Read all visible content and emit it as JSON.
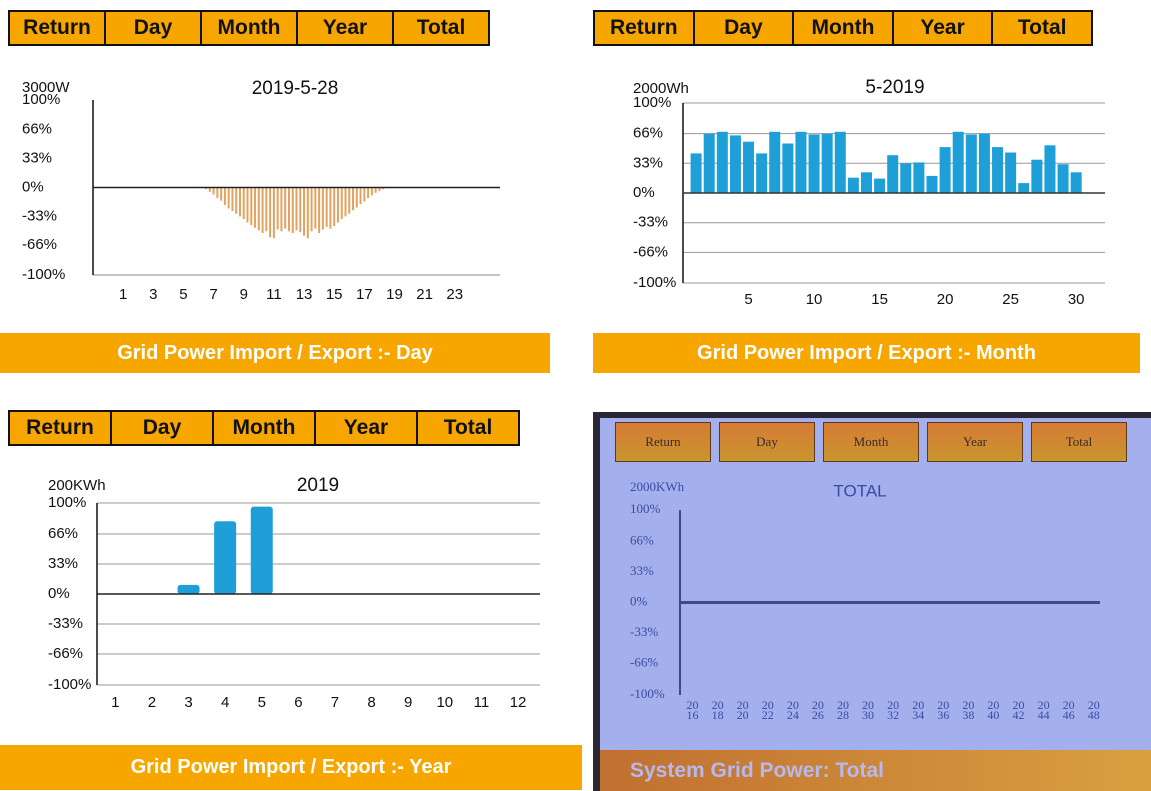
{
  "panels": [
    {
      "buttons": [
        "Return",
        "Day",
        "Month",
        "Year",
        "Total"
      ],
      "caption": "Grid Power Import / Export :- Day"
    },
    {
      "buttons": [
        "Return",
        "Day",
        "Month",
        "Year",
        "Total"
      ],
      "caption": "Grid Power Import / Export :- Month"
    },
    {
      "buttons": [
        "Return",
        "Day",
        "Month",
        "Year",
        "Total"
      ],
      "caption": "Grid Power Import / Export :- Year"
    },
    {
      "buttons": [
        "Return",
        "Day",
        "Month",
        "Year",
        "Total"
      ],
      "caption": "System Grid Power: Total"
    }
  ],
  "chart_data": [
    {
      "type": "bar",
      "title": "2019-5-28",
      "unit_label": "3000W",
      "color": "#e2a260",
      "grid": false,
      "x": [
        6.5,
        6.75,
        7,
        7.25,
        7.5,
        7.75,
        8,
        8.25,
        8.5,
        8.75,
        9,
        9.25,
        9.5,
        9.75,
        10,
        10.25,
        10.5,
        10.75,
        11,
        11.25,
        11.5,
        11.75,
        12,
        12.25,
        12.5,
        12.75,
        13,
        13.25,
        13.5,
        13.75,
        14,
        14.25,
        14.5,
        14.75,
        15,
        15.25,
        15.5,
        15.75,
        16,
        16.25,
        16.5,
        16.75,
        17,
        17.25,
        17.5,
        17.75,
        18,
        18.25
      ],
      "values": [
        -2,
        -5,
        -8,
        -12,
        -15,
        -20,
        -24,
        -27,
        -30,
        -33,
        -36,
        -40,
        -43,
        -46,
        -49,
        -52,
        -50,
        -57,
        -58,
        -48,
        -50,
        -47,
        -50,
        -52,
        -49,
        -51,
        -55,
        -58,
        -50,
        -47,
        -52,
        -48,
        -45,
        -47,
        -44,
        -40,
        -36,
        -33,
        -30,
        -26,
        -23,
        -19,
        -16,
        -12,
        -9,
        -6,
        -4,
        -2
      ],
      "xlim": [
        -1,
        26
      ],
      "xticks": [
        1,
        3,
        5,
        7,
        9,
        11,
        13,
        15,
        17,
        19,
        21,
        23
      ],
      "ylim": [
        -100,
        100
      ],
      "yticks": [
        {
          "value": 100,
          "label": "100%"
        },
        {
          "value": 66,
          "label": "66%"
        },
        {
          "value": 33,
          "label": "33%"
        },
        {
          "value": 0,
          "label": "0%"
        },
        {
          "value": -33,
          "label": "-33%"
        },
        {
          "value": -66,
          "label": "-66%"
        },
        {
          "value": -100,
          "label": "-100%"
        }
      ]
    },
    {
      "type": "bar",
      "title": "5-2019",
      "unit_label": "2000Wh",
      "color": "#1e9fd8",
      "grid": true,
      "x": [
        1,
        2,
        3,
        4,
        5,
        6,
        7,
        8,
        9,
        10,
        11,
        12,
        13,
        14,
        15,
        16,
        17,
        18,
        19,
        20,
        21,
        22,
        23,
        24,
        25,
        26,
        27,
        28,
        29,
        30
      ],
      "values": [
        44,
        66,
        68,
        64,
        57,
        44,
        68,
        55,
        68,
        65,
        66,
        68,
        17,
        23,
        16,
        42,
        33,
        34,
        19,
        51,
        68,
        65,
        66,
        51,
        45,
        11,
        37,
        53,
        32,
        23
      ],
      "xlim": [
        0,
        32.2
      ],
      "xticks": [
        5,
        10,
        15,
        20,
        25,
        30
      ],
      "ylim": [
        -100,
        100
      ],
      "yticks": [
        {
          "value": 100,
          "label": "100%"
        },
        {
          "value": 66,
          "label": "66%"
        },
        {
          "value": 33,
          "label": "33%"
        },
        {
          "value": 0,
          "label": "0%"
        },
        {
          "value": -33,
          "label": "-33%"
        },
        {
          "value": -66,
          "label": "-66%"
        },
        {
          "value": -100,
          "label": "-100%"
        }
      ]
    },
    {
      "type": "bar",
      "title": "2019",
      "unit_label": "200KWh",
      "color": "#1e9fd8",
      "grid": true,
      "x": [
        3,
        4,
        5
      ],
      "values": [
        10,
        80,
        96
      ],
      "xlim": [
        0.5,
        12.6
      ],
      "xticks": [
        1,
        2,
        3,
        4,
        5,
        6,
        7,
        8,
        9,
        10,
        11,
        12
      ],
      "ylim": [
        -100,
        100
      ],
      "yticks": [
        {
          "value": 100,
          "label": "100%"
        },
        {
          "value": 66,
          "label": "66%"
        },
        {
          "value": 33,
          "label": "33%"
        },
        {
          "value": 0,
          "label": "0%"
        },
        {
          "value": -33,
          "label": "-33%"
        },
        {
          "value": -66,
          "label": "-66%"
        },
        {
          "value": -100,
          "label": "-100%"
        }
      ]
    },
    {
      "type": "bar",
      "title": "TOTAL",
      "unit_label": "2000KWh",
      "color": "#3a4aa0",
      "grid": false,
      "x": [],
      "values": [],
      "xlim": [
        2015,
        2048.5
      ],
      "xticks": [
        {
          "value": 2016,
          "label": "20 16"
        },
        {
          "value": 2018,
          "label": "20 18"
        },
        {
          "value": 2020,
          "label": "20 20"
        },
        {
          "value": 2022,
          "label": "20 22"
        },
        {
          "value": 2024,
          "label": "20 24"
        },
        {
          "value": 2026,
          "label": "20 26"
        },
        {
          "value": 2028,
          "label": "20 28"
        },
        {
          "value": 2030,
          "label": "20 30"
        },
        {
          "value": 2032,
          "label": "20 32"
        },
        {
          "value": 2034,
          "label": "20 34"
        },
        {
          "value": 2036,
          "label": "20 36"
        },
        {
          "value": 2038,
          "label": "20 38"
        },
        {
          "value": 2040,
          "label": "20 40"
        },
        {
          "value": 2042,
          "label": "20 42"
        },
        {
          "value": 2044,
          "label": "20 44"
        },
        {
          "value": 2046,
          "label": "20 46"
        },
        {
          "value": 2048,
          "label": "20 48"
        }
      ],
      "ylim": [
        -100,
        100
      ],
      "yticks": [
        {
          "value": 100,
          "label": "100%"
        },
        {
          "value": 66,
          "label": "66%"
        },
        {
          "value": 33,
          "label": "33%"
        },
        {
          "value": 0,
          "label": "0%"
        },
        {
          "value": -33,
          "label": "-33%"
        },
        {
          "value": -66,
          "label": "-66%"
        },
        {
          "value": -100,
          "label": "-100%"
        }
      ]
    }
  ]
}
